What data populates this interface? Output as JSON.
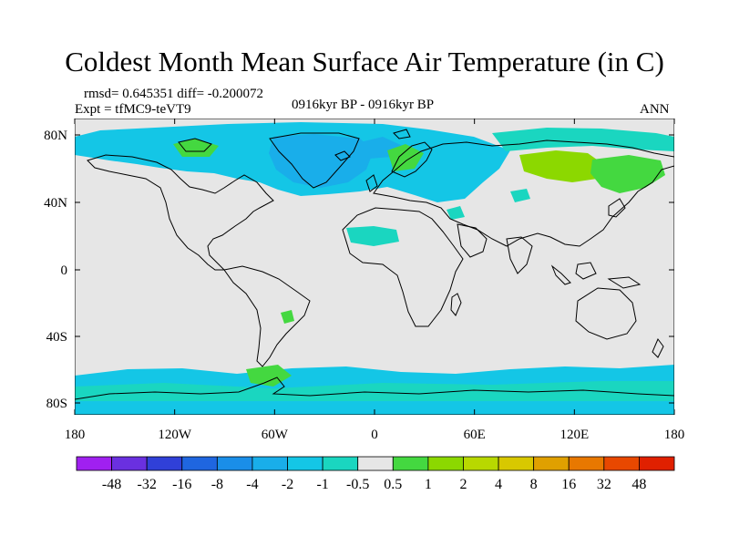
{
  "title": "Coldest Month Mean Surface Air Temperature (in C)",
  "stats": "rmsd= 0.645351 diff= -0.200072",
  "experiment": "Expt = tfMC9-teVT9",
  "period": "0916kyr BP - 0916kyr BP",
  "season": "ANN",
  "lat_labels": [
    "80N",
    "40N",
    "0",
    "40S",
    "80S"
  ],
  "lon_labels": [
    "180",
    "120W",
    "60W",
    "0",
    "60E",
    "120E",
    "180"
  ],
  "colorbar": {
    "colors": [
      "#a020f0",
      "#6a30e0",
      "#3040d8",
      "#1f66e0",
      "#1a8ee8",
      "#19aeea",
      "#14c6e6",
      "#1ad6c0",
      "#e6e6e6",
      "#44d840",
      "#8cd800",
      "#b8d800",
      "#d8c800",
      "#e0a000",
      "#e87800",
      "#e84800",
      "#e02000"
    ],
    "labels": [
      "-48",
      "-32",
      "-16",
      "-8",
      "-4",
      "-2",
      "-1",
      "-0.5",
      "0.5",
      "1",
      "2",
      "4",
      "8",
      "16",
      "32",
      "48"
    ]
  },
  "palette": {
    "neutral": "#e6e6e6",
    "cool_light": "#1ad6c0",
    "cool_mid": "#14c6e6",
    "cool_deep": "#19aeea",
    "warm_light": "#44d840",
    "warm_mid": "#8cd800",
    "coast": "#000000"
  }
}
